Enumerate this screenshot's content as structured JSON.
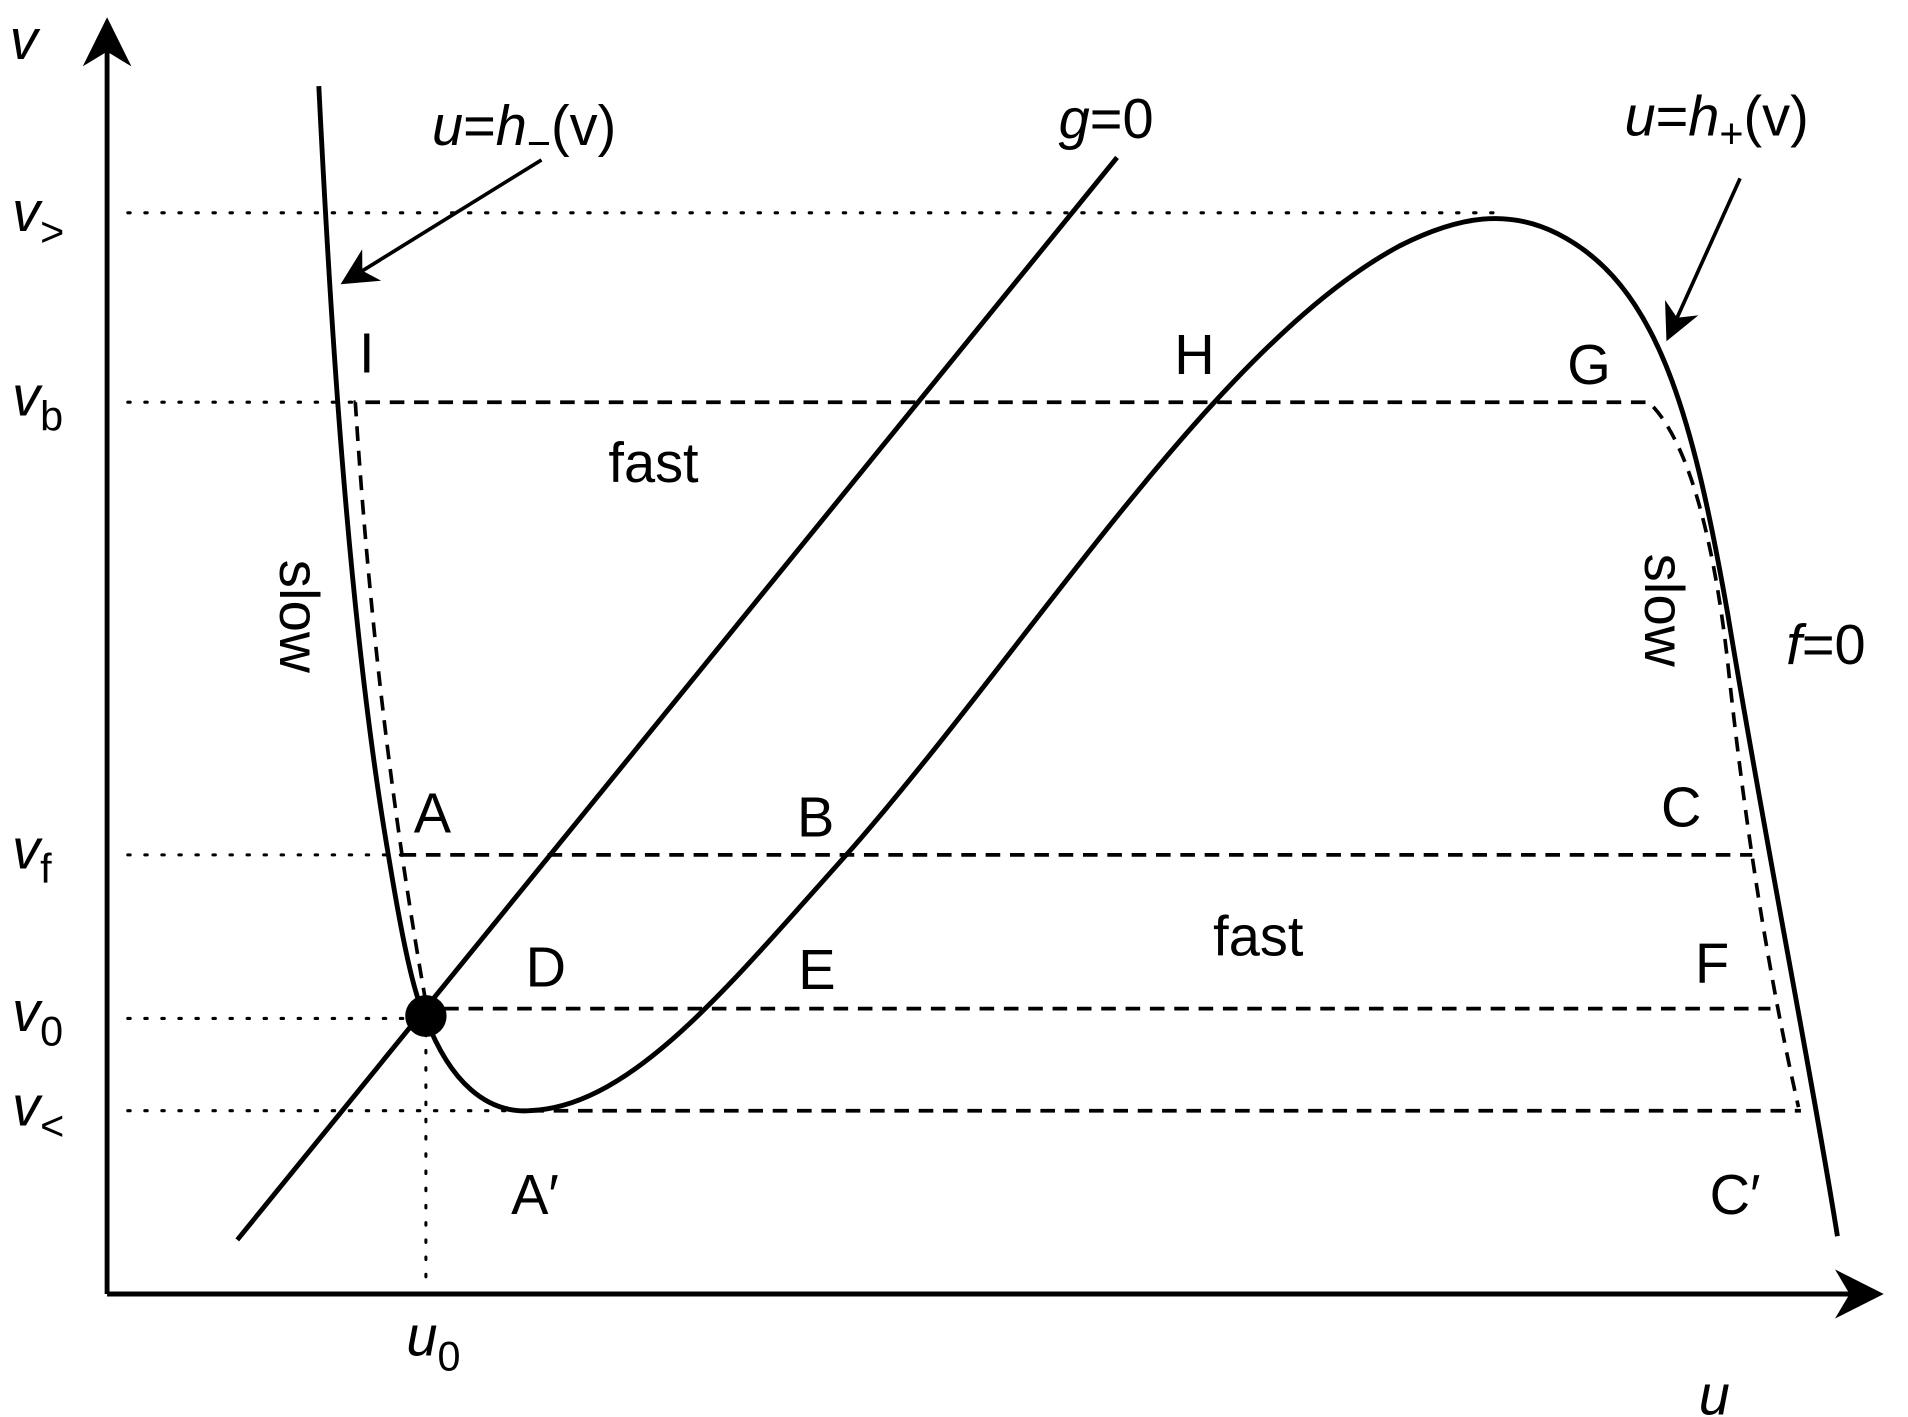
{
  "axes": {
    "x_label": "u",
    "y_label": "v"
  },
  "y_levels": [
    {
      "symbol": "v",
      "subscript": ">"
    },
    {
      "symbol": "v",
      "subscript": "b"
    },
    {
      "symbol": "v",
      "subscript": "f"
    },
    {
      "symbol": "v",
      "subscript": "0"
    },
    {
      "symbol": "v",
      "subscript": "<"
    }
  ],
  "x_levels": [
    {
      "symbol": "u",
      "subscript": "0"
    }
  ],
  "curve_labels": {
    "h_minus": {
      "lhs": "u",
      "eq": "=",
      "fn": "h",
      "sub": "−",
      "arg": "(v)"
    },
    "g_null": {
      "lhs": "g",
      "eq": "=",
      "rhs": "0"
    },
    "h_plus": {
      "lhs": "u",
      "eq": "=",
      "fn": "h",
      "sub": "+",
      "arg": "(v)"
    },
    "f_null": {
      "lhs": "f",
      "eq": "=",
      "rhs": "0"
    }
  },
  "points": [
    "I",
    "H",
    "G",
    "A",
    "B",
    "C",
    "D",
    "E",
    "F",
    "A′",
    "C′"
  ],
  "regions": [
    "fast",
    "fast",
    "slow",
    "slow"
  ]
}
